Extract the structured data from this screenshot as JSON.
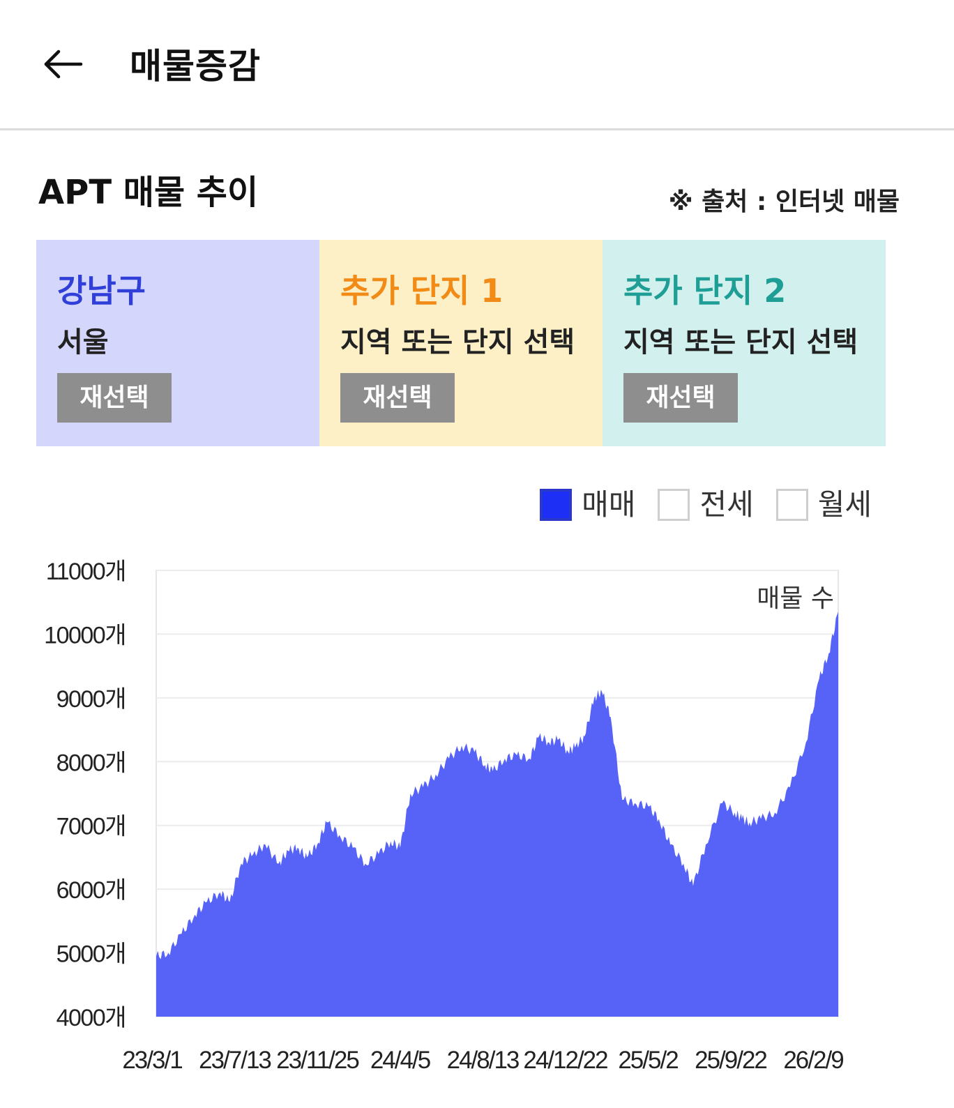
{
  "header": {
    "title": "매물증감",
    "back_icon": "arrow-left-icon"
  },
  "section": {
    "title": "APT 매물 추이",
    "source_note": "※ 출처 : 인터넷 매물"
  },
  "cards": [
    {
      "title": "강남구",
      "subtitle": "서울",
      "button": "재선택",
      "title_color": "#2f3fd8"
    },
    {
      "title": "추가 단지 1",
      "subtitle": "지역 또는 단지 선택",
      "button": "재선택",
      "title_color": "#f28a16"
    },
    {
      "title": "추가 단지 2",
      "subtitle": "지역 또는 단지 선택",
      "button": "재선택",
      "title_color": "#1f9e96"
    }
  ],
  "legend": [
    {
      "label": "매매",
      "checked": true
    },
    {
      "label": "전세",
      "checked": false
    },
    {
      "label": "월세",
      "checked": false
    }
  ],
  "chart_data": {
    "type": "area",
    "series": [
      {
        "name": "매물 수",
        "color": "#5763f7"
      }
    ],
    "ylim": [
      4000,
      11000
    ],
    "y_ticks": [
      4000,
      5000,
      6000,
      7000,
      8000,
      9000,
      10000,
      11000
    ],
    "y_unit": "개",
    "x_tick_labels": [
      "23/3/1",
      "23/7/13",
      "23/11/25",
      "24/4/5",
      "24/8/13",
      "24/12/22",
      "25/5/2",
      "25/9/22",
      "26/2/9"
    ],
    "grid": true,
    "points": [
      [
        "23/3/1",
        4950
      ],
      [
        "23/3/20",
        5000
      ],
      [
        "23/4/10",
        5300
      ],
      [
        "23/5/1",
        5600
      ],
      [
        "23/5/20",
        5800
      ],
      [
        "23/6/10",
        5950
      ],
      [
        "23/6/25",
        5800
      ],
      [
        "23/7/13",
        6400
      ],
      [
        "23/8/1",
        6550
      ],
      [
        "23/8/20",
        6700
      ],
      [
        "23/9/10",
        6400
      ],
      [
        "23/9/25",
        6600
      ],
      [
        "23/10/10",
        6650
      ],
      [
        "23/10/25",
        6500
      ],
      [
        "23/11/10",
        6700
      ],
      [
        "23/11/25",
        7050
      ],
      [
        "23/12/15",
        6850
      ],
      [
        "24/1/5",
        6650
      ],
      [
        "24/1/25",
        6400
      ],
      [
        "24/2/15",
        6550
      ],
      [
        "24/3/5",
        6750
      ],
      [
        "24/3/20",
        6650
      ],
      [
        "24/4/5",
        7500
      ],
      [
        "24/4/25",
        7600
      ],
      [
        "24/5/15",
        7800
      ],
      [
        "24/6/5",
        8050
      ],
      [
        "24/6/25",
        8250
      ],
      [
        "24/7/15",
        8150
      ],
      [
        "24/8/1",
        7950
      ],
      [
        "24/8/13",
        7850
      ],
      [
        "24/9/1",
        8050
      ],
      [
        "24/9/20",
        8100
      ],
      [
        "24/10/10",
        8050
      ],
      [
        "24/10/25",
        8400
      ],
      [
        "24/11/10",
        8300
      ],
      [
        "24/11/25",
        8350
      ],
      [
        "24/12/10",
        8150
      ],
      [
        "24/12/22",
        8250
      ],
      [
        "25/1/5",
        8400
      ],
      [
        "25/1/20",
        9000
      ],
      [
        "25/2/1",
        9100
      ],
      [
        "25/2/15",
        8700
      ],
      [
        "25/3/5",
        7400
      ],
      [
        "25/3/25",
        7350
      ],
      [
        "25/4/15",
        7300
      ],
      [
        "25/5/2",
        7100
      ],
      [
        "25/5/20",
        6700
      ],
      [
        "25/6/10",
        6400
      ],
      [
        "25/6/25",
        6050
      ],
      [
        "25/7/15",
        6700
      ],
      [
        "25/8/10",
        7350
      ],
      [
        "25/8/30",
        7200
      ],
      [
        "25/9/10",
        7100
      ],
      [
        "25/9/22",
        7050
      ],
      [
        "25/10/10",
        7100
      ],
      [
        "25/11/1",
        7200
      ],
      [
        "25/11/25",
        7600
      ],
      [
        "25/12/20",
        8300
      ],
      [
        "26/1/10",
        9300
      ],
      [
        "26/1/25",
        9700
      ],
      [
        "26/2/9",
        10350
      ]
    ]
  }
}
